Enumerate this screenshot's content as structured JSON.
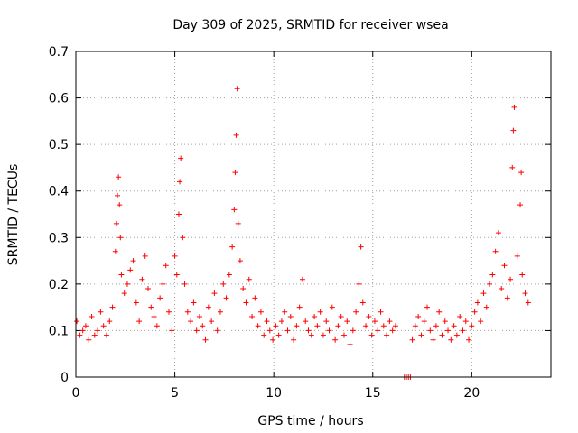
{
  "chart_data": {
    "type": "scatter",
    "title": "Day 309 of 2025, SRMTID for receiver wsea",
    "xlabel": "GPS time / hours",
    "ylabel": "SRMTID / TECUs",
    "xlim": [
      0,
      24
    ],
    "ylim": [
      0,
      0.7
    ],
    "xticks": [
      0,
      5,
      10,
      15,
      20
    ],
    "yticks": [
      0,
      0.1,
      0.2,
      0.3,
      0.4,
      0.5,
      0.6,
      0.7
    ],
    "xtick_labels": [
      "0",
      "5",
      "10",
      "15",
      "20"
    ],
    "ytick_labels": [
      "0",
      "0.1",
      "0.2",
      "0.3",
      "0.4",
      "0.5",
      "0.6",
      "0.7"
    ],
    "grid": true,
    "marker": "plus",
    "color": "#ff0000",
    "series": [
      {
        "name": "SRMTID",
        "x": [
          0.05,
          0.2,
          0.35,
          0.5,
          0.65,
          0.8,
          0.95,
          1.1,
          1.25,
          1.4,
          1.55,
          1.7,
          1.85,
          2.0,
          2.05,
          2.1,
          2.15,
          2.2,
          2.25,
          2.3,
          2.45,
          2.6,
          2.75,
          2.9,
          3.05,
          3.2,
          3.35,
          3.5,
          3.65,
          3.8,
          3.95,
          4.1,
          4.25,
          4.4,
          4.55,
          4.7,
          4.85,
          5.0,
          5.1,
          5.2,
          5.25,
          5.3,
          5.4,
          5.5,
          5.65,
          5.8,
          5.95,
          6.1,
          6.25,
          6.4,
          6.55,
          6.7,
          6.85,
          7.0,
          7.15,
          7.3,
          7.45,
          7.6,
          7.75,
          7.9,
          8.0,
          8.05,
          8.1,
          8.15,
          8.2,
          8.3,
          8.45,
          8.6,
          8.75,
          8.9,
          9.05,
          9.2,
          9.35,
          9.5,
          9.65,
          9.8,
          9.95,
          10.1,
          10.25,
          10.4,
          10.55,
          10.7,
          10.85,
          11.0,
          11.15,
          11.3,
          11.45,
          11.6,
          11.75,
          11.9,
          12.05,
          12.2,
          12.35,
          12.5,
          12.65,
          12.8,
          12.95,
          13.1,
          13.25,
          13.4,
          13.55,
          13.7,
          13.85,
          14.0,
          14.15,
          14.3,
          14.4,
          14.5,
          14.65,
          14.8,
          14.95,
          15.1,
          15.25,
          15.4,
          15.55,
          15.7,
          15.85,
          16.0,
          16.15,
          16.6,
          16.7,
          16.8,
          16.9,
          17.0,
          17.15,
          17.3,
          17.45,
          17.6,
          17.75,
          17.9,
          18.05,
          18.2,
          18.35,
          18.5,
          18.65,
          18.8,
          18.95,
          19.1,
          19.25,
          19.4,
          19.55,
          19.7,
          19.85,
          20.0,
          20.15,
          20.3,
          20.45,
          20.6,
          20.75,
          20.9,
          21.05,
          21.2,
          21.35,
          21.5,
          21.65,
          21.8,
          21.95,
          22.05,
          22.1,
          22.15,
          22.3,
          22.45,
          22.5,
          22.55,
          22.7,
          22.85
        ],
        "y": [
          0.12,
          0.09,
          0.1,
          0.11,
          0.08,
          0.13,
          0.09,
          0.1,
          0.14,
          0.11,
          0.09,
          0.12,
          0.15,
          0.27,
          0.33,
          0.39,
          0.43,
          0.37,
          0.3,
          0.22,
          0.18,
          0.2,
          0.23,
          0.25,
          0.16,
          0.12,
          0.21,
          0.26,
          0.19,
          0.15,
          0.13,
          0.11,
          0.17,
          0.2,
          0.24,
          0.14,
          0.1,
          0.26,
          0.22,
          0.35,
          0.42,
          0.47,
          0.3,
          0.2,
          0.14,
          0.12,
          0.16,
          0.1,
          0.13,
          0.11,
          0.08,
          0.15,
          0.12,
          0.18,
          0.1,
          0.14,
          0.2,
          0.17,
          0.22,
          0.28,
          0.36,
          0.44,
          0.52,
          0.62,
          0.33,
          0.25,
          0.19,
          0.16,
          0.21,
          0.13,
          0.17,
          0.11,
          0.14,
          0.09,
          0.12,
          0.1,
          0.08,
          0.11,
          0.09,
          0.12,
          0.14,
          0.1,
          0.13,
          0.08,
          0.11,
          0.15,
          0.21,
          0.12,
          0.1,
          0.09,
          0.13,
          0.11,
          0.14,
          0.09,
          0.12,
          0.1,
          0.15,
          0.08,
          0.11,
          0.13,
          0.09,
          0.12,
          0.07,
          0.1,
          0.14,
          0.2,
          0.28,
          0.16,
          0.11,
          0.13,
          0.09,
          0.12,
          0.1,
          0.14,
          0.11,
          0.09,
          0.12,
          0.1,
          0.11,
          0.0,
          0.0,
          0.0,
          0.0,
          0.08,
          0.11,
          0.13,
          0.09,
          0.12,
          0.15,
          0.1,
          0.08,
          0.11,
          0.14,
          0.09,
          0.12,
          0.1,
          0.08,
          0.11,
          0.09,
          0.13,
          0.1,
          0.12,
          0.08,
          0.11,
          0.14,
          0.16,
          0.12,
          0.18,
          0.15,
          0.2,
          0.22,
          0.27,
          0.31,
          0.19,
          0.24,
          0.17,
          0.21,
          0.45,
          0.53,
          0.58,
          0.26,
          0.37,
          0.44,
          0.22,
          0.18,
          0.16
        ]
      }
    ]
  }
}
